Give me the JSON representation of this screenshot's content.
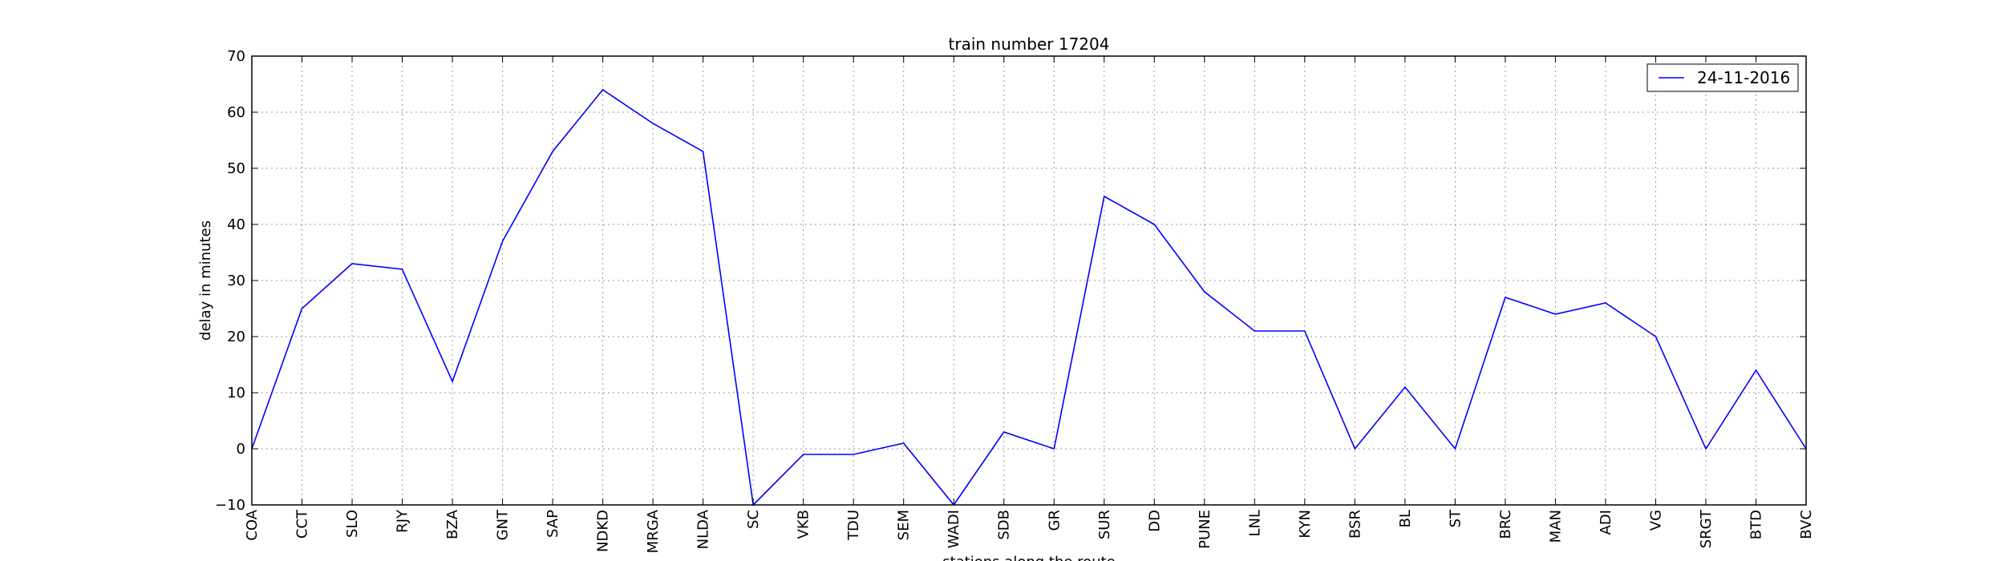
{
  "chart_data": {
    "type": "line",
    "title": "train number 17204",
    "xlabel": "stations along the route",
    "ylabel": "delay in minutes",
    "categories": [
      "COA",
      "CCT",
      "SLO",
      "RJY",
      "BZA",
      "GNT",
      "SAP",
      "NDKD",
      "MRGA",
      "NLDA",
      "SC",
      "VKB",
      "TDU",
      "SEM",
      "WADI",
      "SDB",
      "GR",
      "SUR",
      "DD",
      "PUNE",
      "LNL",
      "KYN",
      "BSR",
      "BL",
      "ST",
      "BRC",
      "MAN",
      "ADI",
      "VG",
      "SRGT",
      "BTD",
      "BVC"
    ],
    "series": [
      {
        "name": "24-11-2016",
        "color": "#0000ff",
        "values": [
          0,
          25,
          33,
          32,
          12,
          37,
          53,
          64,
          58,
          53,
          -10,
          -1,
          -1,
          1,
          -10,
          3,
          0,
          45,
          40,
          28,
          21,
          21,
          0,
          11,
          0,
          27,
          24,
          26,
          20,
          0,
          14,
          0
        ]
      }
    ],
    "ylim": [
      -10,
      70
    ],
    "yticks": [
      -10,
      0,
      10,
      20,
      30,
      40,
      50,
      60,
      70
    ],
    "grid": true,
    "legend_position": "top-right"
  }
}
